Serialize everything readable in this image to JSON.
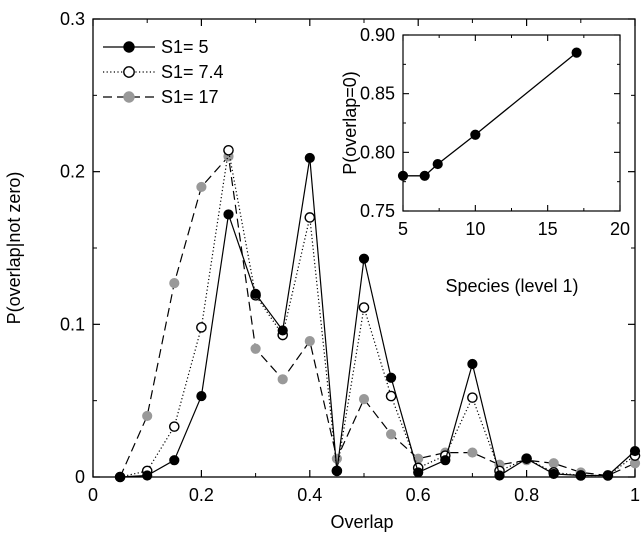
{
  "chart_data": [
    {
      "type": "line",
      "title": "",
      "xlabel": "Overlap",
      "ylabel": "P(overlap|not zero)",
      "xlim": [
        0,
        1
      ],
      "ylim": [
        0,
        0.3
      ],
      "xticks": [
        0,
        0.2,
        0.4,
        0.6,
        0.8,
        1
      ],
      "yticks": [
        0,
        0.1,
        0.2,
        0.3
      ],
      "xtick_labels": [
        "0",
        "0.2",
        "0.4",
        "0.6",
        "0.8",
        "1"
      ],
      "ytick_labels": [
        "0",
        "0.1",
        "0.2",
        "0.3"
      ],
      "grid": false,
      "legend_position": "top-left",
      "x": [
        0.05,
        0.1,
        0.15,
        0.2,
        0.25,
        0.3,
        0.35,
        0.4,
        0.45,
        0.5,
        0.55,
        0.6,
        0.65,
        0.7,
        0.75,
        0.8,
        0.85,
        0.9,
        0.95,
        1.0
      ],
      "series": [
        {
          "name": "S1= 5",
          "style": "solid",
          "marker": "filled-black",
          "color": "#000000",
          "values": [
            0,
            0.001,
            0.011,
            0.053,
            0.172,
            0.12,
            0.096,
            0.209,
            0.004,
            0.143,
            0.065,
            0.003,
            0.011,
            0.074,
            0.001,
            0.012,
            0.002,
            0.001,
            0.001,
            0.017
          ]
        },
        {
          "name": "S1= 7.4",
          "style": "dotted",
          "marker": "open-circle",
          "color": "#000000",
          "values": [
            0,
            0.004,
            0.033,
            0.098,
            0.214,
            0.119,
            0.093,
            0.17,
            0.004,
            0.111,
            0.053,
            0.006,
            0.014,
            0.052,
            0.004,
            0.012,
            0.003,
            0.001,
            0.001,
            0.014
          ]
        },
        {
          "name": "S1= 17",
          "style": "dashed",
          "marker": "filled-gray",
          "color": "#999999",
          "values": [
            0,
            0.04,
            0.127,
            0.19,
            0.21,
            0.084,
            0.064,
            0.089,
            0.012,
            0.051,
            0.028,
            0.012,
            0.016,
            0.016,
            0.008,
            0.011,
            0.009,
            0.003,
            0.001,
            0.009
          ]
        }
      ]
    },
    {
      "type": "line",
      "title": "",
      "xlabel": "Species (level 1)",
      "ylabel": "P(overlap=0)",
      "xlim": [
        5,
        20
      ],
      "ylim": [
        0.75,
        0.9
      ],
      "xticks": [
        5,
        10,
        15,
        20
      ],
      "yticks": [
        0.75,
        0.8,
        0.85,
        0.9
      ],
      "xtick_labels": [
        "5",
        "10",
        "15",
        "20"
      ],
      "ytick_labels": [
        "0.75",
        "0.80",
        "0.85",
        "0.90"
      ],
      "grid": false,
      "series": [
        {
          "style": "solid",
          "marker": "filled-black",
          "color": "#000000",
          "x": [
            5,
            6.5,
            7.4,
            10,
            17
          ],
          "values": [
            0.78,
            0.78,
            0.79,
            0.815,
            0.885
          ]
        }
      ]
    }
  ]
}
